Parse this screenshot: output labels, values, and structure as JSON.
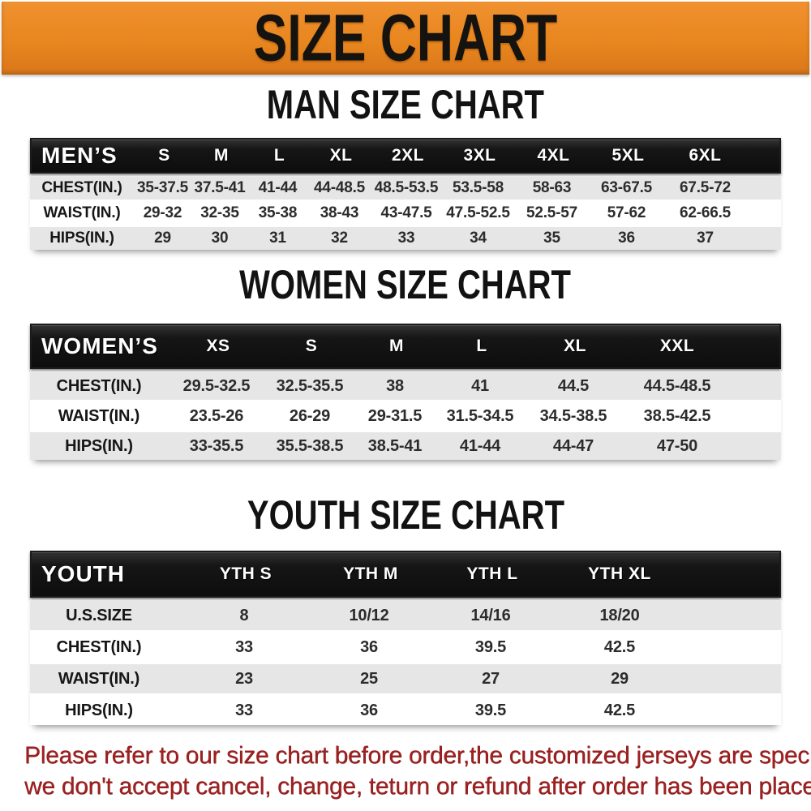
{
  "banner": {
    "title": "SIZE CHART",
    "bg_color": "#e8861f",
    "text_color": "#151310"
  },
  "sections": [
    {
      "heading": "MAN SIZE CHART",
      "table": {
        "header": [
          "MEN’S",
          "S",
          "M",
          "L",
          "XL",
          "2XL",
          "3XL",
          "4XL",
          "5XL",
          "6XL"
        ],
        "rows": [
          {
            "label": "CHEST(IN.)",
            "values": [
              "35-37.5",
              "37.5-41",
              "41-44",
              "44-48.5",
              "48.5-53.5",
              "53.5-58",
              "58-63",
              "63-67.5",
              "67.5-72"
            ]
          },
          {
            "label": "WAIST(IN.)",
            "values": [
              "29-32",
              "32-35",
              "35-38",
              "38-43",
              "43-47.5",
              "47.5-52.5",
              "52.5-57",
              "57-62",
              "62-66.5"
            ]
          },
          {
            "label": "HIPS(IN.)",
            "values": [
              "29",
              "30",
              "31",
              "32",
              "33",
              "34",
              "35",
              "36",
              "37"
            ]
          }
        ]
      }
    },
    {
      "heading": "WOMEN SIZE CHART",
      "table": {
        "header": [
          "WOMEN’S",
          "XS",
          "S",
          "M",
          "L",
          "XL",
          "XXL"
        ],
        "rows": [
          {
            "label": "CHEST(IN.)",
            "values": [
              "29.5-32.5",
              "32.5-35.5",
              "38",
              "41",
              "44.5",
              "44.5-48.5"
            ]
          },
          {
            "label": "WAIST(IN.)",
            "values": [
              "23.5-26",
              "26-29",
              "29-31.5",
              "31.5-34.5",
              "34.5-38.5",
              "38.5-42.5"
            ]
          },
          {
            "label": "HIPS(IN.)",
            "values": [
              "33-35.5",
              "35.5-38.5",
              "38.5-41",
              "41-44",
              "44-47",
              "47-50"
            ]
          }
        ]
      }
    },
    {
      "heading": "YOUTH SIZE CHART",
      "table": {
        "header": [
          "YOUTH",
          "YTH S",
          "YTH M",
          "YTH L",
          "YTH XL"
        ],
        "rows": [
          {
            "label": "U.S.SIZE",
            "values": [
              "8",
              "10/12",
              "14/16",
              "18/20"
            ]
          },
          {
            "label": "CHEST(IN.)",
            "values": [
              "33",
              "36",
              "39.5",
              "42.5"
            ]
          },
          {
            "label": "WAIST(IN.)",
            "values": [
              "23",
              "25",
              "27",
              "29"
            ]
          },
          {
            "label": "HIPS(IN.)",
            "values": [
              "33",
              "36",
              "39.5",
              "42.5"
            ]
          }
        ]
      }
    }
  ],
  "footer": {
    "line1": "Please refer to our size chart before order,the customized jerseys are special products,",
    "line2": "we don't accept cancel, change, teturn or refund after order has been placed!",
    "text_color": "#9e2121"
  },
  "colors": {
    "header_bar": "#141414",
    "row_gray": "#e6e6e6",
    "row_white": "#ffffff"
  }
}
